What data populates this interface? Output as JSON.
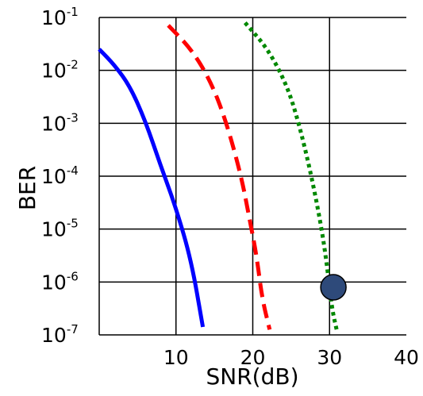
{
  "chart_data": {
    "type": "line",
    "xlabel": "SNR(dB)",
    "ylabel": "BER",
    "xlim": [
      0,
      40
    ],
    "ylim_log10": [
      -7,
      -1
    ],
    "y_scale": "log",
    "grid": true,
    "x_ticks": [
      {
        "value": 10,
        "label": "10"
      },
      {
        "value": 20,
        "label": "20"
      },
      {
        "value": 30,
        "label": "30"
      },
      {
        "value": 40,
        "label": "40"
      }
    ],
    "y_ticks": [
      {
        "value": -1,
        "base": "10",
        "exp": "-1"
      },
      {
        "value": -2,
        "base": "10",
        "exp": "-2"
      },
      {
        "value": -3,
        "base": "10",
        "exp": "-3"
      },
      {
        "value": -4,
        "base": "10",
        "exp": "-4"
      },
      {
        "value": -5,
        "base": "10",
        "exp": "-5"
      },
      {
        "value": -6,
        "base": "10",
        "exp": "-6"
      },
      {
        "value": -7,
        "base": "10",
        "exp": "-7"
      }
    ],
    "series": [
      {
        "color": "#0000ff",
        "style": "solid",
        "points": [
          [
            0,
            -1.6
          ],
          [
            2,
            -1.9
          ],
          [
            4,
            -2.3
          ],
          [
            6,
            -2.95
          ],
          [
            8,
            -3.8
          ],
          [
            10,
            -4.6
          ],
          [
            12,
            -5.6
          ],
          [
            13.5,
            -6.85
          ]
        ]
      },
      {
        "color": "#ff0000",
        "style": "dashed",
        "points": [
          [
            9,
            -1.15
          ],
          [
            12,
            -1.6
          ],
          [
            14.5,
            -2.2
          ],
          [
            16.5,
            -2.95
          ],
          [
            18.5,
            -4.0
          ],
          [
            19.5,
            -4.75
          ],
          [
            20.5,
            -5.5
          ],
          [
            21.2,
            -6.3
          ],
          [
            22.2,
            -6.9
          ]
        ]
      },
      {
        "color": "#008800",
        "style": "dotted",
        "points": [
          [
            19,
            -1.1
          ],
          [
            22,
            -1.6
          ],
          [
            24.5,
            -2.3
          ],
          [
            26,
            -3.0
          ],
          [
            27.5,
            -3.9
          ],
          [
            28.8,
            -4.85
          ],
          [
            29.6,
            -5.6
          ],
          [
            30.3,
            -6.5
          ],
          [
            31,
            -6.95
          ]
        ]
      }
    ],
    "marker": {
      "x": 30.5,
      "y": -6.1,
      "color": "#2e4a7a"
    }
  }
}
